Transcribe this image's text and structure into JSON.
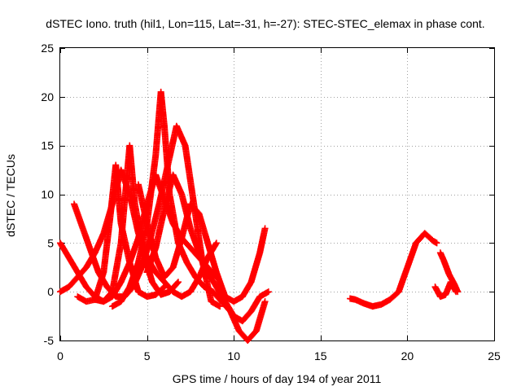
{
  "chart_data": {
    "type": "scatter",
    "title": "dSTEC Iono. truth (hil1, Lon=115, Lat=-31, h=-27): STEC-STEC_elemax in phase cont.",
    "xlabel": "GPS time / hours of day 194 of year 2011",
    "ylabel": "dSTEC  / TECUs",
    "xlim": [
      0,
      25
    ],
    "ylim": [
      -5,
      25
    ],
    "x_ticks": [
      "0",
      "5",
      "10",
      "15",
      "20",
      "25"
    ],
    "y_ticks": [
      "-5",
      "0",
      "5",
      "10",
      "15",
      "20",
      "25"
    ],
    "grid": true,
    "marker": "+",
    "series_color": "#ff0000",
    "series": [
      {
        "x": [
          0.0,
          0.5,
          1.0,
          1.5,
          2.0,
          2.5,
          3.0,
          3.5,
          4.0,
          4.5,
          5.0,
          5.5,
          6.0,
          6.5,
          7.0,
          7.5,
          8.0,
          8.5,
          9.0
        ],
        "y": [
          5.0,
          3.5,
          2.0,
          0.5,
          -0.5,
          -1.0,
          -0.5,
          1.0,
          3.0,
          5.5,
          9.0,
          12.0,
          9.5,
          7.0,
          5.5,
          4.5,
          3.5,
          2.5,
          1.5
        ]
      },
      {
        "x": [
          0.0,
          0.5,
          1.0,
          1.5,
          2.0,
          2.5,
          3.0,
          3.5,
          4.0,
          4.5,
          5.0,
          5.5,
          6.0,
          6.5,
          7.0,
          7.5,
          8.0,
          8.5,
          9.0
        ],
        "y": [
          0.0,
          0.5,
          1.5,
          2.5,
          4.0,
          6.0,
          9.0,
          12.5,
          10.0,
          6.0,
          3.5,
          2.0,
          1.0,
          0.0,
          -0.5,
          0.0,
          1.5,
          3.5,
          5.0
        ]
      },
      {
        "x": [
          0.8,
          1.2,
          1.7,
          2.2,
          2.7,
          3.2,
          3.7,
          4.2,
          4.7,
          5.2,
          5.7,
          6.2,
          6.7,
          7.2,
          7.7,
          8.2,
          8.7,
          9.2
        ],
        "y": [
          9.0,
          7.0,
          4.5,
          2.0,
          0.5,
          -0.5,
          -0.5,
          0.5,
          2.5,
          5.5,
          9.0,
          13.0,
          17.0,
          15.0,
          9.0,
          3.0,
          -1.0,
          -1.5
        ]
      },
      {
        "x": [
          1.0,
          1.5,
          2.0,
          2.5,
          2.9,
          3.2,
          3.5,
          4.0,
          4.5,
          5.0,
          5.5,
          6.0
        ],
        "y": [
          -0.5,
          -1.0,
          -0.8,
          2.0,
          8.0,
          13.0,
          7.0,
          3.0,
          0.0,
          -0.5,
          -0.3,
          0.5
        ]
      },
      {
        "x": [
          2.0,
          2.5,
          3.0,
          3.5,
          3.8,
          4.0,
          4.3,
          4.8,
          5.3,
          5.8,
          6.3,
          6.8
        ],
        "y": [
          -0.8,
          -1.0,
          0.0,
          5.0,
          11.0,
          15.0,
          9.0,
          4.0,
          1.0,
          -0.3,
          0.0,
          1.0
        ]
      },
      {
        "x": [
          3.0,
          3.5,
          4.0,
          4.5,
          5.0,
          5.5,
          5.8,
          6.0,
          6.3,
          6.8,
          7.3,
          7.8,
          8.3,
          8.8,
          9.3,
          9.8,
          10.3,
          10.8,
          11.3,
          11.8
        ],
        "y": [
          -1.5,
          -1.0,
          0.5,
          3.0,
          7.0,
          14.0,
          20.5,
          17.0,
          10.0,
          5.0,
          3.0,
          1.5,
          0.5,
          0.0,
          -1.0,
          -2.0,
          -4.0,
          -5.0,
          -4.0,
          -1.0
        ]
      },
      {
        "x": [
          4.5,
          5.0,
          5.5,
          6.0,
          6.5,
          7.0,
          7.5,
          8.0,
          8.5,
          9.0,
          9.5,
          10.0,
          10.5,
          11.0,
          11.5,
          11.8
        ],
        "y": [
          11.0,
          7.0,
          3.5,
          1.5,
          2.5,
          5.5,
          9.0,
          8.0,
          5.0,
          2.0,
          -0.5,
          -1.0,
          -0.5,
          1.0,
          4.0,
          6.5
        ]
      },
      {
        "x": [
          5.0,
          5.5,
          6.0,
          6.5,
          7.0,
          7.5,
          8.0,
          8.5,
          9.0,
          9.5,
          10.0,
          10.5,
          11.0,
          11.5,
          12.0
        ],
        "y": [
          2.0,
          4.5,
          8.5,
          12.0,
          10.0,
          6.5,
          4.0,
          2.0,
          0.5,
          -1.0,
          -2.5,
          -3.0,
          -2.0,
          -0.5,
          0.0
        ]
      },
      {
        "x": [
          16.7,
          17.0,
          17.5,
          18.0,
          18.5,
          19.0,
          19.5,
          20.0,
          20.5,
          21.0,
          21.5,
          21.7
        ],
        "y": [
          -0.7,
          -0.8,
          -1.2,
          -1.5,
          -1.3,
          -0.8,
          0.0,
          2.5,
          5.0,
          6.0,
          5.2,
          5.0
        ]
      },
      {
        "x": [
          21.6,
          21.9,
          22.2,
          22.5,
          22.8
        ],
        "y": [
          0.5,
          -0.5,
          -0.3,
          1.0,
          0.0
        ]
      },
      {
        "x": [
          21.9,
          22.1,
          22.4,
          22.7,
          22.9
        ],
        "y": [
          4.0,
          3.2,
          1.8,
          0.8,
          0.0
        ]
      }
    ]
  }
}
